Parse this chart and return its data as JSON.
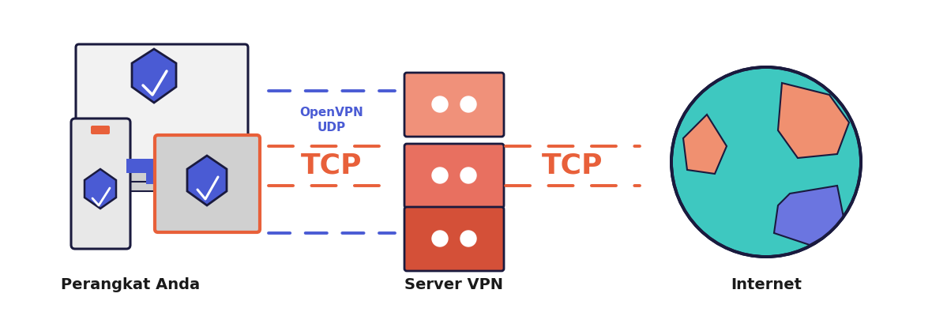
{
  "bg_color": "#ffffff",
  "label_device": "Perangkat Anda",
  "label_server": "Server VPN",
  "label_internet": "Internet",
  "label_openvpn": "OpenVPN\nUDP",
  "label_tcp_left": "TCP",
  "label_tcp_right": "TCP",
  "color_orange": "#E8603A",
  "color_blue": "#4A5BD4",
  "color_blue_light": "#5B6FE0",
  "color_server_top": "#F0917A",
  "color_server_mid": "#E87060",
  "color_server_bot": "#D45038",
  "color_teal": "#3EC8C0",
  "color_peach": "#F09070",
  "color_purple_globe": "#6B75E0",
  "color_dark": "#1a1a3e",
  "color_label": "#1a1a1a"
}
